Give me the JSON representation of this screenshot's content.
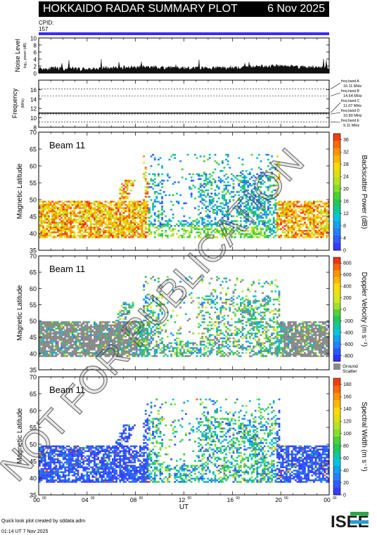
{
  "header": {
    "title": "HOKKAIDO RADAR SUMMARY PLOT",
    "date": "6 Nov 2025"
  },
  "cpid": {
    "label": "CPID:",
    "value": "157"
  },
  "colors": {
    "cpid_bar": "#3a2bff",
    "header_bg": "#000000",
    "ground_scatter": "#8a8a8a"
  },
  "watermark": "NOT FOR PUBLICATION",
  "footer": {
    "line1": "Quick look plot created by sddata.adm",
    "line2": "01:14 UT  7 Nov 2025"
  },
  "logo": {
    "text": "ISEE"
  },
  "chart_data": [
    {
      "type": "area",
      "ylabel": "Noise Level",
      "ylabel_sub": "log₁₀ power (dB)",
      "ylim": [
        0,
        10
      ],
      "yticks": [
        "0",
        "2",
        "4",
        "6",
        "8",
        "10"
      ],
      "xlim": [
        0,
        24
      ],
      "x": [
        0,
        2,
        4,
        6,
        8,
        10,
        12,
        14,
        16,
        18,
        20,
        22,
        24
      ],
      "values": [
        1.2,
        1.1,
        1.0,
        1.3,
        1.6,
        1.5,
        1.2,
        1.3,
        1.4,
        1.7,
        2.0,
        1.6,
        1.4
      ]
    },
    {
      "type": "line",
      "ylabel": "Frequency",
      "ylabel_sub": "(MHz)",
      "ylim": [
        8,
        18
      ],
      "yticks": [
        "8",
        "10",
        "12",
        "14",
        "16"
      ],
      "xlim": [
        0,
        24
      ],
      "bands": [
        {
          "label": "freq band A",
          "freq": "16.11 MHz",
          "value": 16.11
        },
        {
          "label": "freq band B",
          "freq": "14.64 MHz",
          "value": 14.64
        },
        {
          "label": "freq band C",
          "freq": "11.07 MHz",
          "value": 11.07
        },
        {
          "label": "freq band D",
          "freq": "10.80 MHz",
          "value": 10.8
        },
        {
          "label": "freq band E",
          "freq": "9.11 MHz",
          "value": 9.11
        }
      ],
      "operating_frequency": 11.0
    },
    {
      "type": "heatmap",
      "beam": "Beam 11",
      "ylabel": "Magnetic Latitude",
      "ylim": [
        35,
        70
      ],
      "yticks": [
        "35",
        "40",
        "45",
        "50",
        "55",
        "60",
        "65",
        "70"
      ],
      "xlim": [
        0,
        24
      ],
      "colorbar": {
        "label": "Backscatter Power (dB)",
        "ticks": [
          "0",
          "4",
          "8",
          "12",
          "16",
          "20",
          "24",
          "28",
          "32",
          "36"
        ],
        "range": [
          0,
          38
        ]
      },
      "ground_scatter": false
    },
    {
      "type": "heatmap",
      "beam": "Beam 11",
      "ylabel": "Magnetic Latitude",
      "ylim": [
        35,
        70
      ],
      "yticks": [
        "35",
        "40",
        "45",
        "50",
        "55",
        "60",
        "65",
        "70"
      ],
      "xlim": [
        0,
        24
      ],
      "colorbar": {
        "label": "Doppler Velocity (m s⁻¹)",
        "ticks": [
          "-800",
          "-600",
          "-400",
          "-200",
          "0",
          "200",
          "400",
          "600",
          "800"
        ],
        "range": [
          -900,
          900
        ]
      },
      "ground_scatter": true,
      "ground_scatter_label": [
        "Ground",
        "Scatter"
      ]
    },
    {
      "type": "heatmap",
      "beam": "Beam 11",
      "ylabel": "Magnetic Latitude",
      "ylim": [
        35,
        70
      ],
      "yticks": [
        "35",
        "40",
        "45",
        "50",
        "55",
        "60",
        "65",
        "70"
      ],
      "xlim": [
        0,
        24
      ],
      "xlabel": "UT",
      "xticks": [
        "00",
        "04",
        "08",
        "12",
        "16",
        "20",
        "00"
      ],
      "xtick_sup": "00",
      "colorbar": {
        "label": "Spectral Width (m s⁻¹)",
        "ticks": [
          "0",
          "20",
          "40",
          "60",
          "80",
          "100",
          "120",
          "140",
          "160",
          "180"
        ],
        "range": [
          0,
          190
        ]
      },
      "ground_scatter": false
    }
  ]
}
